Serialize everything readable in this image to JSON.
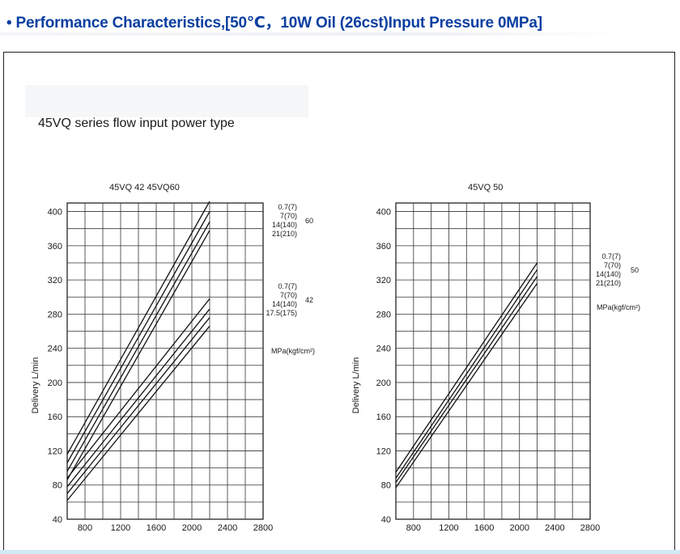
{
  "header": {
    "title": "• Performance Characteristics,[50℃，10W Oil (26cst)Input Pressure 0MPa]"
  },
  "figure": {
    "heading": "45VQ series flow input power type"
  },
  "chart_data": [
    {
      "type": "line",
      "title": "45VQ 42  45VQ60",
      "xlabel": "",
      "ylabel": "Delivery L/min",
      "xlim": [
        600,
        2800
      ],
      "ylim": [
        40,
        410
      ],
      "x_ticks": [
        "800",
        "1200",
        "1600",
        "2000",
        "2400",
        "2800"
      ],
      "y_ticks": [
        "40",
        "80",
        "120",
        "160",
        "200",
        "240",
        "280",
        "320",
        "360",
        "400"
      ],
      "grid": true,
      "legend_groups": [
        {
          "model": "60",
          "entries": [
            "0.7(7)",
            "7(70)",
            "14(140)",
            "21(210)"
          ]
        },
        {
          "model": "42",
          "entries": [
            "0.7(7)",
            "7(70)",
            "14(140)",
            "17.5(175)"
          ]
        }
      ],
      "unit_label": "MPa(kgf/cm²)",
      "series": [
        {
          "name": "0.7(7)",
          "group": "60",
          "x": [
            600,
            2200
          ],
          "y": [
            116,
            412
          ]
        },
        {
          "name": "7(70)",
          "group": "60",
          "x": [
            600,
            2200
          ],
          "y": [
            106,
            400
          ]
        },
        {
          "name": "14(140)",
          "group": "60",
          "x": [
            600,
            2200
          ],
          "y": [
            96,
            388
          ]
        },
        {
          "name": "21(210)",
          "group": "60",
          "x": [
            600,
            2200
          ],
          "y": [
            86,
            378
          ]
        },
        {
          "name": "0.7(7)",
          "group": "42",
          "x": [
            600,
            2200
          ],
          "y": [
            88,
            298
          ]
        },
        {
          "name": "7(70)",
          "group": "42",
          "x": [
            600,
            2200
          ],
          "y": [
            78,
            286
          ]
        },
        {
          "name": "14(140)",
          "group": "42",
          "x": [
            600,
            2200
          ],
          "y": [
            70,
            276
          ]
        },
        {
          "name": "17.5(175)",
          "group": "42",
          "x": [
            600,
            2200
          ],
          "y": [
            62,
            266
          ]
        }
      ]
    },
    {
      "type": "line",
      "title": "45VQ 50",
      "xlabel": "",
      "ylabel": "Delivery L/min",
      "xlim": [
        600,
        2800
      ],
      "ylim": [
        40,
        410
      ],
      "x_ticks": [
        "800",
        "1200",
        "1600",
        "2000",
        "2400",
        "2800"
      ],
      "y_ticks": [
        "40",
        "80",
        "120",
        "160",
        "200",
        "240",
        "280",
        "320",
        "360",
        "400"
      ],
      "grid": true,
      "legend_groups": [
        {
          "model": "50",
          "entries": [
            "0.7(7)",
            "7(70)",
            "14(140)",
            "21(210)"
          ]
        }
      ],
      "unit_label": "MPa(kgf/cm²)",
      "series": [
        {
          "name": "0.7(7)",
          "group": "50",
          "x": [
            600,
            2200
          ],
          "y": [
            95,
            340
          ]
        },
        {
          "name": "7(70)",
          "group": "50",
          "x": [
            600,
            2200
          ],
          "y": [
            88,
            332
          ]
        },
        {
          "name": "14(140)",
          "group": "50",
          "x": [
            600,
            2200
          ],
          "y": [
            83,
            324
          ]
        },
        {
          "name": "21(210)",
          "group": "50",
          "x": [
            600,
            2200
          ],
          "y": [
            77,
            316
          ]
        }
      ]
    }
  ]
}
